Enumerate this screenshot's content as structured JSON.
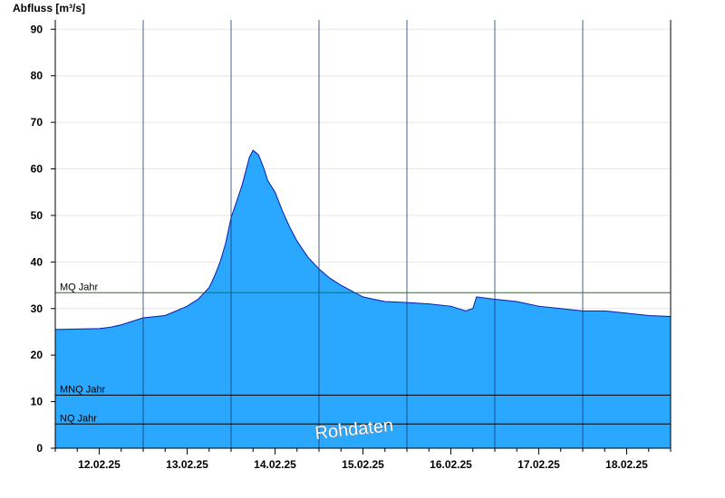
{
  "chart_data": {
    "type": "area",
    "ylabel": "Abfluss [m³/s]",
    "ylim": [
      0,
      92
    ],
    "yticks": [
      0,
      10,
      20,
      30,
      40,
      50,
      60,
      70,
      80,
      90
    ],
    "xlim": [
      "2025-02-11T12:00",
      "2025-02-18T12:00"
    ],
    "xtick_labels": [
      {
        "label": "12.02.25",
        "t": "2025-02-12T00:00"
      },
      {
        "label": "13.02.25",
        "t": "2025-02-13T00:00"
      },
      {
        "label": "14.02.25",
        "t": "2025-02-14T00:00"
      },
      {
        "label": "15.02.25",
        "t": "2025-02-15T00:00"
      },
      {
        "label": "16.02.25",
        "t": "2025-02-16T00:00"
      },
      {
        "label": "17.02.25",
        "t": "2025-02-17T00:00"
      },
      {
        "label": "18.02.25",
        "t": "2025-02-18T00:00"
      }
    ],
    "day_separators": [
      "2025-02-12T12:00",
      "2025-02-13T12:00",
      "2025-02-14T12:00",
      "2025-02-15T12:00",
      "2025-02-16T12:00",
      "2025-02-17T12:00"
    ],
    "grid": true,
    "fill_color": "#2aa7ff",
    "line_color": "#0a1ab0",
    "reference_lines": [
      {
        "label": "MQ Jahr",
        "value": 33.4,
        "color": "#1a7a1a"
      },
      {
        "label": "MNQ Jahr",
        "value": 11.4,
        "color": "#000000"
      },
      {
        "label": "NQ Jahr",
        "value": 5.2,
        "color": "#000000"
      }
    ],
    "watermark": "Rohdaten",
    "series": [
      {
        "x": [
          "2025-02-11T12:00",
          "2025-02-11T18:00",
          "2025-02-12T00:00",
          "2025-02-12T03:00",
          "2025-02-12T06:00",
          "2025-02-12T12:00",
          "2025-02-12T18:00",
          "2025-02-13T00:00",
          "2025-02-13T03:00",
          "2025-02-13T06:00",
          "2025-02-13T07:30",
          "2025-02-13T09:00",
          "2025-02-13T10:30",
          "2025-02-13T12:00",
          "2025-02-13T13:30",
          "2025-02-13T15:00",
          "2025-02-13T16:00",
          "2025-02-13T17:00",
          "2025-02-13T18:00",
          "2025-02-13T19:30",
          "2025-02-13T21:00",
          "2025-02-13T22:00",
          "2025-02-14T00:00",
          "2025-02-14T02:00",
          "2025-02-14T04:00",
          "2025-02-14T06:00",
          "2025-02-14T09:00",
          "2025-02-14T12:00",
          "2025-02-14T15:00",
          "2025-02-14T18:00",
          "2025-02-15T00:00",
          "2025-02-15T03:00",
          "2025-02-15T06:00",
          "2025-02-15T12:00",
          "2025-02-15T18:00",
          "2025-02-16T00:00",
          "2025-02-16T04:00",
          "2025-02-16T06:00",
          "2025-02-16T07:00",
          "2025-02-16T12:00",
          "2025-02-16T18:00",
          "2025-02-17T00:00",
          "2025-02-17T06:00",
          "2025-02-17T12:00",
          "2025-02-17T18:00",
          "2025-02-18T00:00",
          "2025-02-18T06:00",
          "2025-02-18T12:00"
        ],
        "y": [
          25.5,
          25.6,
          25.7,
          26.0,
          26.5,
          28.0,
          28.5,
          30.5,
          32.0,
          34.5,
          37.0,
          40.0,
          44.0,
          49.5,
          53.0,
          56.5,
          59.5,
          62.5,
          64.0,
          63.0,
          60.0,
          57.5,
          55.0,
          51.0,
          47.5,
          44.5,
          41.0,
          38.5,
          36.5,
          35.0,
          32.5,
          32.0,
          31.5,
          31.3,
          31.0,
          30.5,
          29.5,
          30.0,
          32.5,
          32.0,
          31.5,
          30.5,
          30.0,
          29.5,
          29.5,
          29.0,
          28.5,
          28.3
        ]
      }
    ]
  }
}
